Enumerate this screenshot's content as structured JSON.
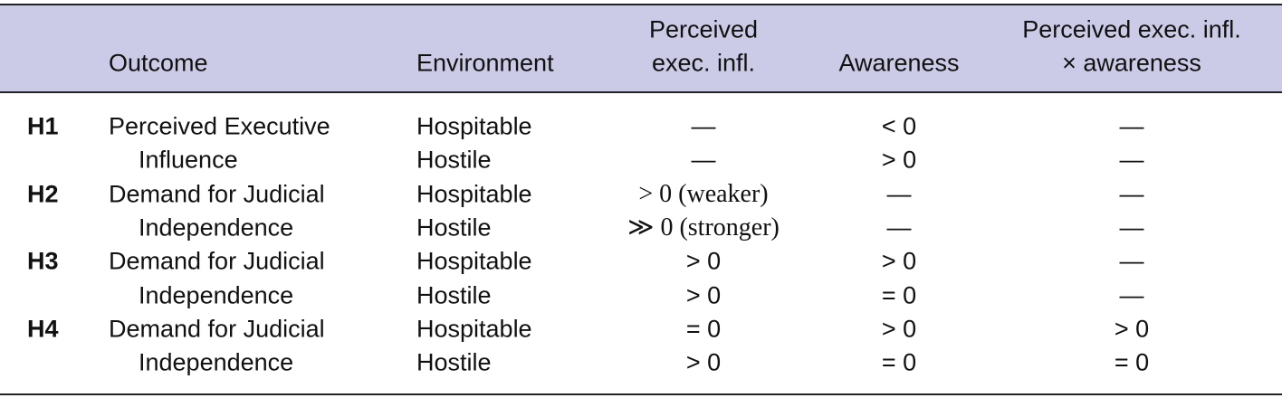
{
  "table": {
    "header": [
      [
        "Outcome"
      ],
      [
        "Environment"
      ],
      [
        "Perceived",
        "exec. infl."
      ],
      [
        "Awareness"
      ],
      [
        "Perceived exec. infl.",
        "× awareness"
      ]
    ],
    "groups": [
      {
        "id": "H1",
        "outcome": [
          "Perceived Executive",
          "Influence"
        ],
        "rows": [
          [
            "Hospitable",
            "—",
            "< 0",
            "—"
          ],
          [
            "Hostile",
            "—",
            "> 0",
            "—"
          ]
        ]
      },
      {
        "id": "H2",
        "outcome": [
          "Demand for Judicial",
          "Independence"
        ],
        "rows": [
          [
            "Hospitable",
            "> 0 (weaker)",
            "—",
            "—"
          ],
          [
            "Hostile",
            "≫ 0 (stronger)",
            "—",
            "—"
          ]
        ]
      },
      {
        "id": "H3",
        "outcome": [
          "Demand for Judicial",
          "Independence"
        ],
        "rows": [
          [
            "Hospitable",
            "> 0",
            "> 0",
            "—"
          ],
          [
            "Hostile",
            "> 0",
            "= 0",
            "—"
          ]
        ]
      },
      {
        "id": "H4",
        "outcome": [
          "Demand for Judicial",
          "Independence"
        ],
        "rows": [
          [
            "Hospitable",
            "= 0",
            "> 0",
            "> 0"
          ],
          [
            "Hostile",
            "> 0",
            "= 0",
            "= 0"
          ]
        ]
      }
    ]
  }
}
